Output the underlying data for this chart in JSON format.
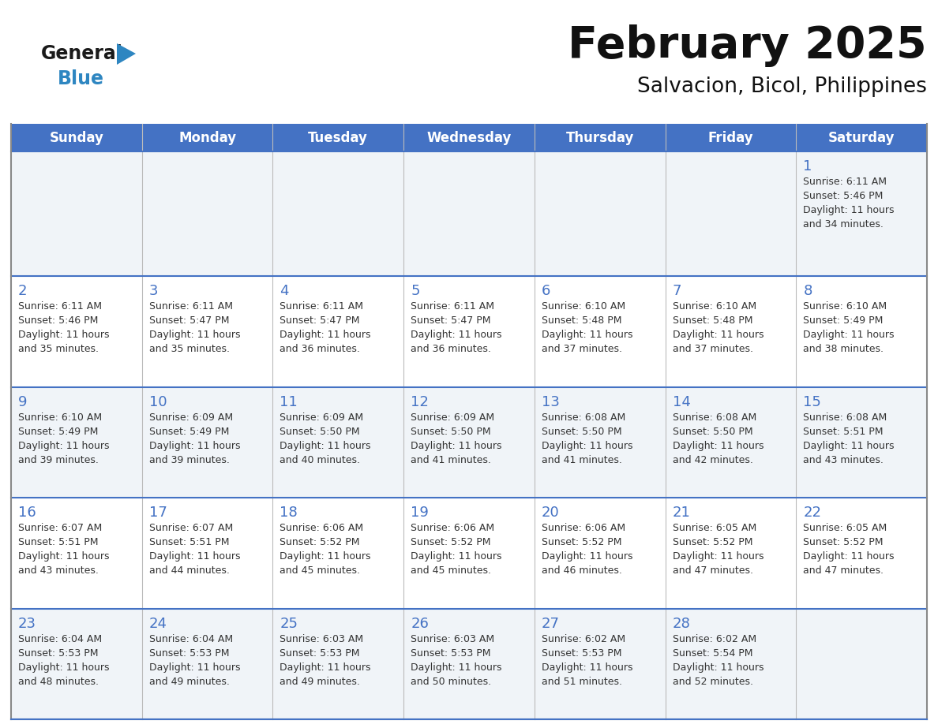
{
  "title": "February 2025",
  "subtitle": "Salvacion, Bicol, Philippines",
  "header_bg": "#4472C4",
  "header_text_color": "#FFFFFF",
  "cell_bg_odd": "#F0F4F8",
  "cell_bg_even": "#FFFFFF",
  "day_number_color": "#4472C4",
  "text_color": "#333333",
  "row_border_color": "#4472C4",
  "col_border_color": "#CCCCCC",
  "days_of_week": [
    "Sunday",
    "Monday",
    "Tuesday",
    "Wednesday",
    "Thursday",
    "Friday",
    "Saturday"
  ],
  "calendar_data": [
    [
      null,
      null,
      null,
      null,
      null,
      null,
      {
        "day": 1,
        "sunrise": "6:11 AM",
        "sunset": "5:46 PM",
        "daylight_hours": 11,
        "daylight_minutes": 34
      }
    ],
    [
      {
        "day": 2,
        "sunrise": "6:11 AM",
        "sunset": "5:46 PM",
        "daylight_hours": 11,
        "daylight_minutes": 35
      },
      {
        "day": 3,
        "sunrise": "6:11 AM",
        "sunset": "5:47 PM",
        "daylight_hours": 11,
        "daylight_minutes": 35
      },
      {
        "day": 4,
        "sunrise": "6:11 AM",
        "sunset": "5:47 PM",
        "daylight_hours": 11,
        "daylight_minutes": 36
      },
      {
        "day": 5,
        "sunrise": "6:11 AM",
        "sunset": "5:47 PM",
        "daylight_hours": 11,
        "daylight_minutes": 36
      },
      {
        "day": 6,
        "sunrise": "6:10 AM",
        "sunset": "5:48 PM",
        "daylight_hours": 11,
        "daylight_minutes": 37
      },
      {
        "day": 7,
        "sunrise": "6:10 AM",
        "sunset": "5:48 PM",
        "daylight_hours": 11,
        "daylight_minutes": 37
      },
      {
        "day": 8,
        "sunrise": "6:10 AM",
        "sunset": "5:49 PM",
        "daylight_hours": 11,
        "daylight_minutes": 38
      }
    ],
    [
      {
        "day": 9,
        "sunrise": "6:10 AM",
        "sunset": "5:49 PM",
        "daylight_hours": 11,
        "daylight_minutes": 39
      },
      {
        "day": 10,
        "sunrise": "6:09 AM",
        "sunset": "5:49 PM",
        "daylight_hours": 11,
        "daylight_minutes": 39
      },
      {
        "day": 11,
        "sunrise": "6:09 AM",
        "sunset": "5:50 PM",
        "daylight_hours": 11,
        "daylight_minutes": 40
      },
      {
        "day": 12,
        "sunrise": "6:09 AM",
        "sunset": "5:50 PM",
        "daylight_hours": 11,
        "daylight_minutes": 41
      },
      {
        "day": 13,
        "sunrise": "6:08 AM",
        "sunset": "5:50 PM",
        "daylight_hours": 11,
        "daylight_minutes": 41
      },
      {
        "day": 14,
        "sunrise": "6:08 AM",
        "sunset": "5:50 PM",
        "daylight_hours": 11,
        "daylight_minutes": 42
      },
      {
        "day": 15,
        "sunrise": "6:08 AM",
        "sunset": "5:51 PM",
        "daylight_hours": 11,
        "daylight_minutes": 43
      }
    ],
    [
      {
        "day": 16,
        "sunrise": "6:07 AM",
        "sunset": "5:51 PM",
        "daylight_hours": 11,
        "daylight_minutes": 43
      },
      {
        "day": 17,
        "sunrise": "6:07 AM",
        "sunset": "5:51 PM",
        "daylight_hours": 11,
        "daylight_minutes": 44
      },
      {
        "day": 18,
        "sunrise": "6:06 AM",
        "sunset": "5:52 PM",
        "daylight_hours": 11,
        "daylight_minutes": 45
      },
      {
        "day": 19,
        "sunrise": "6:06 AM",
        "sunset": "5:52 PM",
        "daylight_hours": 11,
        "daylight_minutes": 45
      },
      {
        "day": 20,
        "sunrise": "6:06 AM",
        "sunset": "5:52 PM",
        "daylight_hours": 11,
        "daylight_minutes": 46
      },
      {
        "day": 21,
        "sunrise": "6:05 AM",
        "sunset": "5:52 PM",
        "daylight_hours": 11,
        "daylight_minutes": 47
      },
      {
        "day": 22,
        "sunrise": "6:05 AM",
        "sunset": "5:52 PM",
        "daylight_hours": 11,
        "daylight_minutes": 47
      }
    ],
    [
      {
        "day": 23,
        "sunrise": "6:04 AM",
        "sunset": "5:53 PM",
        "daylight_hours": 11,
        "daylight_minutes": 48
      },
      {
        "day": 24,
        "sunrise": "6:04 AM",
        "sunset": "5:53 PM",
        "daylight_hours": 11,
        "daylight_minutes": 49
      },
      {
        "day": 25,
        "sunrise": "6:03 AM",
        "sunset": "5:53 PM",
        "daylight_hours": 11,
        "daylight_minutes": 49
      },
      {
        "day": 26,
        "sunrise": "6:03 AM",
        "sunset": "5:53 PM",
        "daylight_hours": 11,
        "daylight_minutes": 50
      },
      {
        "day": 27,
        "sunrise": "6:02 AM",
        "sunset": "5:53 PM",
        "daylight_hours": 11,
        "daylight_minutes": 51
      },
      {
        "day": 28,
        "sunrise": "6:02 AM",
        "sunset": "5:54 PM",
        "daylight_hours": 11,
        "daylight_minutes": 52
      },
      null
    ]
  ],
  "logo_color_general": "#1A1A1A",
  "logo_color_blue": "#2E86C1",
  "logo_triangle_color": "#2E86C1"
}
